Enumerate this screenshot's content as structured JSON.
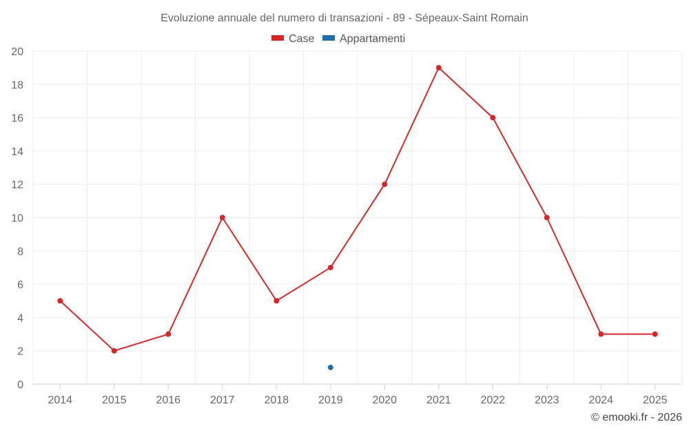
{
  "chart_data": {
    "type": "line",
    "title": "Evoluzione annuale del numero di transazioni - 89 - Sépeaux-Saint Romain",
    "categories": [
      "2014",
      "2015",
      "2016",
      "2017",
      "2018",
      "2019",
      "2020",
      "2021",
      "2022",
      "2023",
      "2024",
      "2025"
    ],
    "ylim": [
      0,
      20
    ],
    "yticks": [
      0,
      2,
      4,
      6,
      8,
      10,
      12,
      14,
      16,
      18,
      20
    ],
    "grid": true,
    "legend_position": "top-center",
    "series": [
      {
        "name": "Case",
        "color": "#d62728",
        "values": [
          5,
          2,
          3,
          10,
          5,
          7,
          12,
          19,
          16,
          10,
          3,
          3
        ]
      },
      {
        "name": "Appartamenti",
        "color": "#1f6fa8",
        "values": [
          null,
          null,
          null,
          null,
          null,
          1,
          null,
          null,
          null,
          null,
          null,
          null
        ]
      }
    ]
  },
  "credit": "© emooki.fr - 2026"
}
